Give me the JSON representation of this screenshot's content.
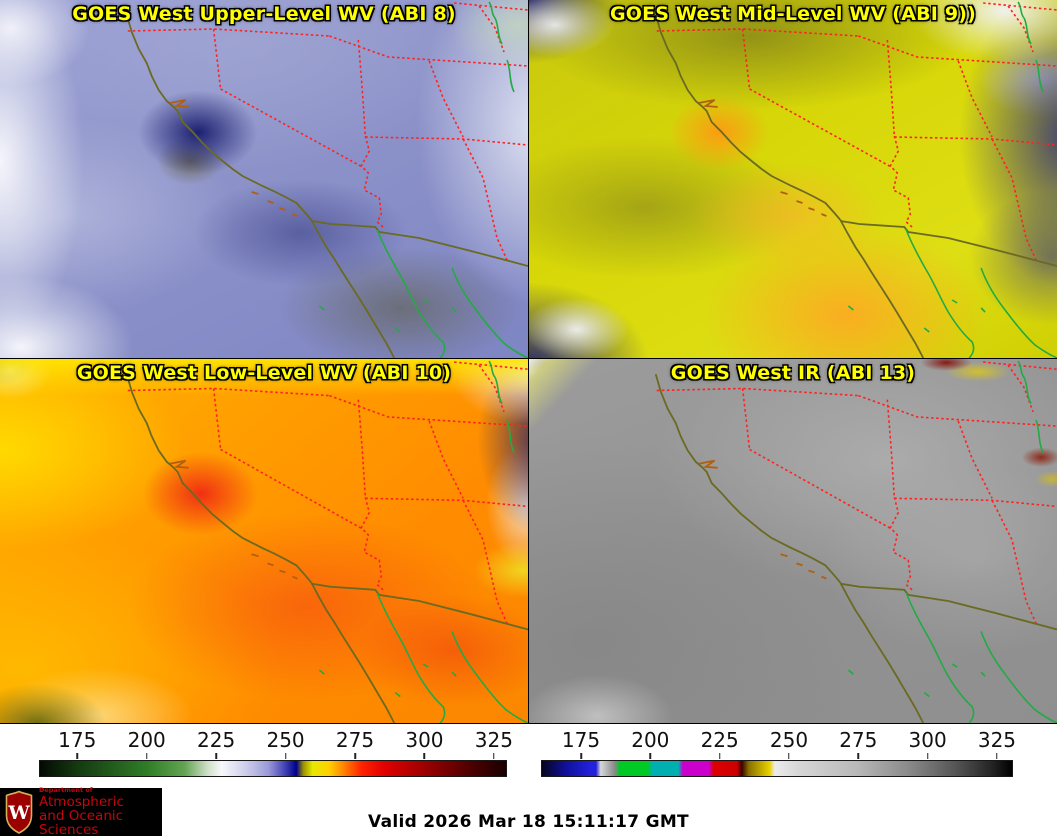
{
  "panels": [
    {
      "id": "abi8",
      "title": "GOES West Upper-Level WV (ABI 8)"
    },
    {
      "id": "abi9",
      "title": "GOES West Mid-Level WV (ABI 9))"
    },
    {
      "id": "abi10",
      "title": "GOES West Low-Level WV (ABI 10)"
    },
    {
      "id": "abi13",
      "title": "GOES West IR (ABI 13)"
    }
  ],
  "colorbars": [
    {
      "name": "wv-temperature-colorbar",
      "ticks": [
        "175",
        "200",
        "225",
        "250",
        "275",
        "300",
        "325"
      ]
    },
    {
      "name": "ir-temperature-colorbar",
      "ticks": [
        "175",
        "200",
        "225",
        "250",
        "275",
        "300",
        "325"
      ]
    }
  ],
  "footer": {
    "valid_time": "Valid 2026 Mar 18 15:11:17 GMT",
    "logo": {
      "crest_letter": "W",
      "dept_prefix": "Department of",
      "dept_line1": "Atmospheric",
      "dept_line2": "and Oceanic Sciences"
    }
  },
  "colors": {
    "title_text": "#ffff00",
    "state_border_red": "#ff2222",
    "coastline_olive": "#6a6a22",
    "mexico_outline_green": "#22aa44",
    "uw_red": "#c5050c"
  }
}
